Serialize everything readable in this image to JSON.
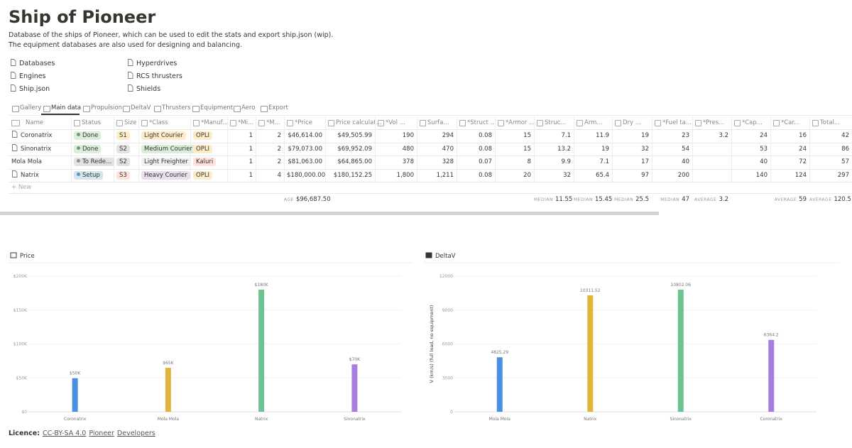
{
  "header": {
    "title": "Ship of Pioneer",
    "description": [
      "Database of the ships of Pioneer, which can be used to edit the stats and export ship.json (wip).",
      "The equipment databases are also used for designing and balancing."
    ]
  },
  "links": [
    "Databases",
    "Engines",
    "Ship.json",
    "Hyperdrives",
    "RCS thrusters",
    "Shields"
  ],
  "tabs": [
    "Gallery",
    "Main data",
    "Propulsion",
    "DeltaV",
    "Thrusters",
    "Equipment",
    "Aero",
    "Export"
  ],
  "table": {
    "columns": [
      "Name",
      "Status",
      "Size",
      "*Class",
      "*Manuf...",
      "*Mi...",
      "*M...",
      "*Price",
      "Price calculat...",
      "*Vol ...",
      "Surfa...",
      "*Struct ...",
      "*Armor ...",
      "Struc...",
      "Arm...",
      "Dry ...",
      "*Fuel ta...",
      "*Pres...",
      "*Cap...",
      "*Car...",
      "Total..."
    ],
    "rows": [
      [
        "Coronatrix",
        "Done",
        "S1",
        "Light Courier",
        "OPLI",
        "1",
        "2",
        "$46,614.00",
        "$49,505.99",
        "190",
        "294",
        "0.08",
        "15",
        "7.1",
        "11.9",
        "19",
        "23",
        "3.2",
        "24",
        "16",
        "42"
      ],
      [
        "Sinonatrix",
        "Done",
        "S2",
        "Medium Courier",
        "OPLI",
        "1",
        "2",
        "$79,073.00",
        "$69,952.09",
        "480",
        "470",
        "0.08",
        "15",
        "13.2",
        "19",
        "32",
        "54",
        null,
        "53",
        "24",
        "86"
      ],
      [
        "Mola Mola",
        "To Rede...",
        "S2",
        "Light Freighter",
        "Kaluri",
        "1",
        "2",
        "$81,063.00",
        "$64,865.00",
        "378",
        "328",
        "0.07",
        "8",
        "9.9",
        "7.1",
        "17",
        "40",
        null,
        "40",
        "72",
        "57"
      ],
      [
        "Natrix",
        "Setup",
        "S3",
        "Heavy Courier",
        "OPLI",
        "1",
        "4",
        "$180,000.00",
        "$180,152.25",
        "1,800",
        "1,211",
        "0.08",
        "20",
        "32",
        "65.4",
        "97",
        "200",
        null,
        "140",
        "124",
        "297"
      ]
    ],
    "new_row": "+ New",
    "footer": [
      null,
      null,
      null,
      null,
      null,
      null,
      null,
      {
        "label": "AGE",
        "value": "$96,687.50"
      },
      null,
      null,
      null,
      null,
      null,
      {
        "label": "MEDIAN",
        "value": "11.55"
      },
      {
        "label": "MEDIAN",
        "value": "15.45"
      },
      {
        "label": "MEDIAN",
        "value": "25.5"
      },
      {
        "label": "MEDIAN",
        "value": "47"
      },
      {
        "label": "AVERAGE",
        "value": "3.2"
      },
      null,
      {
        "label": "AVERAGE",
        "value": "59"
      },
      {
        "label": "AVERAGE",
        "value": "120.5"
      }
    ]
  },
  "charts": [
    {
      "type": "bar",
      "title": "Price",
      "categories": [
        "Coronatrix",
        "Mola Mola",
        "Natrix",
        "Sinonatrix"
      ],
      "values": [
        49505.99,
        64865,
        180152.25,
        69952.09
      ],
      "value_labels": [
        "$50K",
        "$65K",
        "$180K",
        "$70K"
      ],
      "colors": [
        "#4a90e2",
        "#e0b53a",
        "#6cc391",
        "#a77ee0"
      ],
      "ylim": [
        0,
        200000
      ],
      "yticks": [
        {
          "value": 0,
          "label": "$0"
        },
        {
          "value": 50000,
          "label": "$50K"
        },
        {
          "value": 100000,
          "label": "$100K"
        },
        {
          "value": 150000,
          "label": "$150K"
        },
        {
          "value": 200000,
          "label": "$200K"
        }
      ]
    },
    {
      "type": "bar",
      "title": "DeltaV",
      "y_label": "V (km/s) (full load, no equipment)",
      "categories": [
        "Mola Mola",
        "Natrix",
        "Sinonatrix",
        "Coronatrix"
      ],
      "values": [
        4825.29,
        10311.52,
        10802.06,
        6364.2
      ],
      "colors": [
        "#4a90e2",
        "#e0b53a",
        "#6cc391",
        "#a77ee0"
      ],
      "ylim": [
        0,
        12000
      ],
      "yticks": [
        0,
        3000,
        6000,
        9000,
        12000
      ]
    }
  ],
  "licence": {
    "label": "Licence:",
    "links": [
      "CC-BY-SA 4.0",
      "Pioneer",
      "Developers"
    ]
  }
}
